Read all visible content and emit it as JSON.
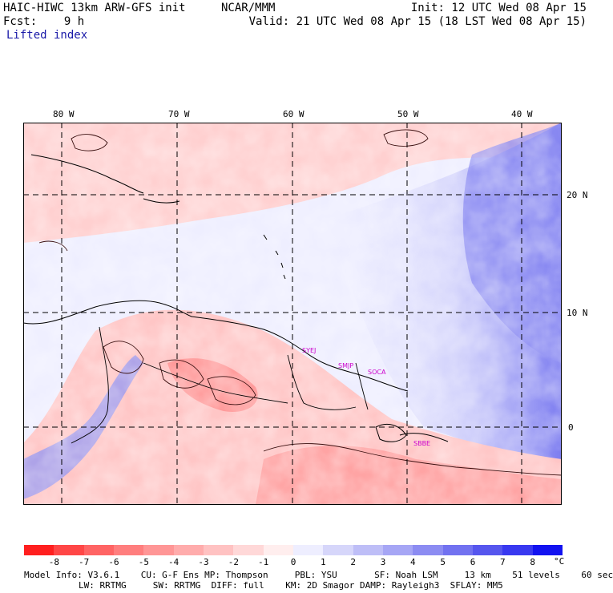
{
  "header": {
    "model_title": "HAIC-HIWC 13km ARW-GFS init",
    "org": "NCAR/MMM",
    "init": "Init: 12 UTC Wed 08 Apr 15",
    "fcst": "Fcst:    9 h",
    "valid": "Valid: 21 UTC Wed 08 Apr 15 (18 LST Wed 08 Apr 15)",
    "field": "Lifted index"
  },
  "map": {
    "lon_labels": [
      "80 W",
      "70 W",
      "60 W",
      "50 W",
      "40 W"
    ],
    "lat_labels": [
      "20 N",
      "10 N",
      "0"
    ],
    "stations": [
      "SYEJ",
      "SMJP",
      "SOCA",
      "SBBE"
    ]
  },
  "colorbar": {
    "unit": "°C",
    "ticks": [
      "-8",
      "-7",
      "-6",
      "-5",
      "-4",
      "-3",
      "-2",
      "-1",
      "0",
      "1",
      "2",
      "3",
      "4",
      "5",
      "6",
      "7",
      "8"
    ],
    "colors": [
      "#ff1f1f",
      "#ff4646",
      "#ff6464",
      "#ff7e7e",
      "#ff9696",
      "#ffacac",
      "#ffc2c2",
      "#ffd8d8",
      "#ffeeee",
      "#eeeeff",
      "#d6d6fa",
      "#bebef7",
      "#a6a6f5",
      "#8c8cf2",
      "#7272f0",
      "#5656ee",
      "#3838f0",
      "#1212f0"
    ]
  },
  "footer": {
    "line1": "Model Info: V3.6.1    CU: G-F Ens MP: Thompson     PBL: YSU       SF: Noah LSM     13 km    51 levels    60 sec",
    "line2": "LW: RRTMG     SW: RRTMG  DIFF: full    KM: 2D Smagor DAMP: Rayleigh3  SFLAY: MM5"
  }
}
